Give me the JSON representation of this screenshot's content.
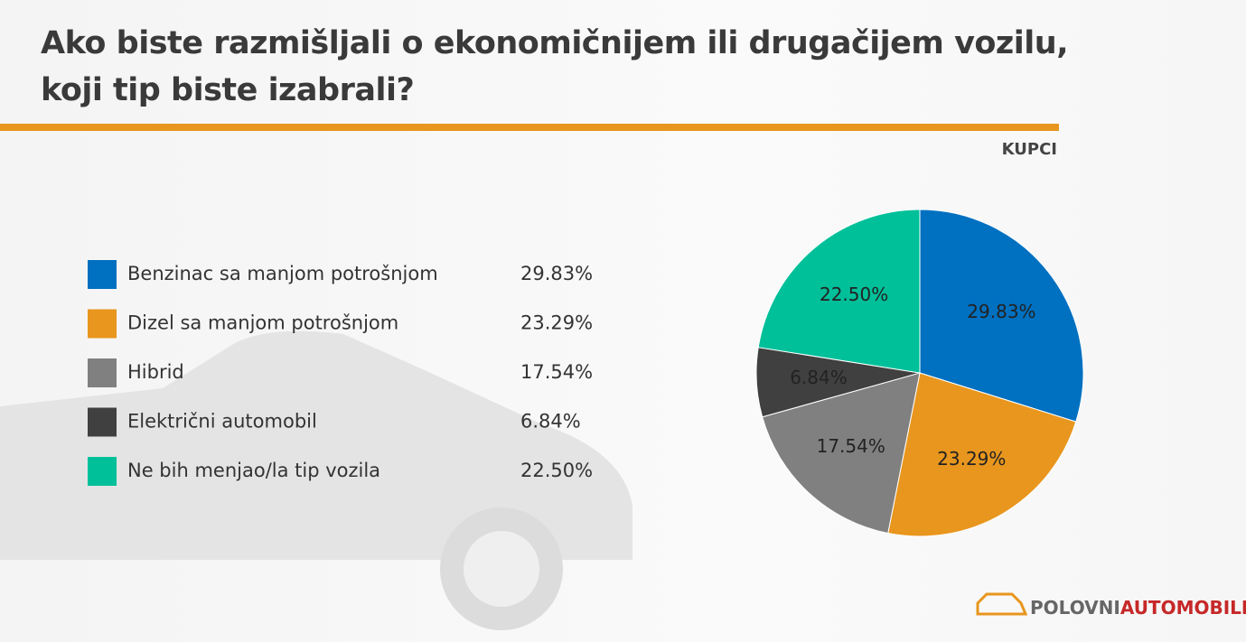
{
  "chart_data": {
    "type": "pie",
    "title": "Ako biste razmišljali o ekonomičnijem ili drugačijem vozilu, koji tip biste izabrali?",
    "subtitle": "KUPCI",
    "categories": [
      "Benzinac sa manjom potrošnjom",
      "Dizel sa manjom potrošnjom",
      "Hibrid",
      "Električni automobil",
      "Ne bih menjao/la tip vozila"
    ],
    "values": [
      29.83,
      23.29,
      17.54,
      6.84,
      22.5
    ],
    "value_labels": [
      "29.83%",
      "23.29%",
      "17.54%",
      "6.84%",
      "22.50%"
    ],
    "colors": [
      "#0070c0",
      "#e8961e",
      "#808080",
      "#404040",
      "#00c09a"
    ]
  },
  "logo": {
    "part1": "POLOVNI",
    "part2": "AUTOMOBILI"
  }
}
